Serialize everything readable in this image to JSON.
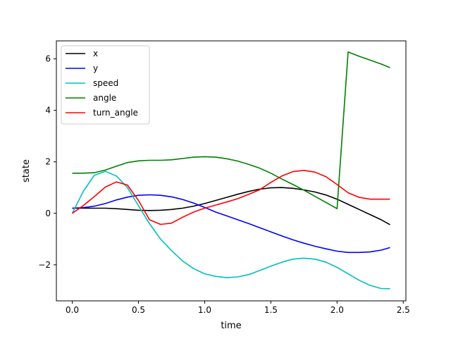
{
  "chart_data": {
    "type": "line",
    "xlabel": "time",
    "ylabel": "state",
    "xlim": [
      -0.12,
      2.52
    ],
    "ylim": [
      -3.4,
      6.7
    ],
    "x_ticks": [
      0.0,
      0.5,
      1.0,
      1.5,
      2.0,
      2.5
    ],
    "x_tick_labels": [
      "0.0",
      "0.5",
      "1.0",
      "1.5",
      "2.0",
      "2.5"
    ],
    "y_ticks": [
      -2,
      0,
      2,
      4,
      6
    ],
    "y_tick_labels": [
      "−2",
      "0",
      "2",
      "4",
      "6"
    ],
    "grid": false,
    "legend_position": "top-left",
    "x": [
      0.0,
      0.0833,
      0.1667,
      0.25,
      0.3333,
      0.4167,
      0.5,
      0.5833,
      0.6667,
      0.75,
      0.8333,
      0.9167,
      1.0,
      1.0833,
      1.1667,
      1.25,
      1.3333,
      1.4167,
      1.5,
      1.5833,
      1.6667,
      1.75,
      1.8333,
      1.9167,
      2.0,
      2.0833,
      2.1667,
      2.25,
      2.3333,
      2.4
    ],
    "series": [
      {
        "name": "x",
        "color": "#000000",
        "values": [
          0.2,
          0.2,
          0.2,
          0.2,
          0.18,
          0.15,
          0.12,
          0.11,
          0.12,
          0.15,
          0.2,
          0.28,
          0.38,
          0.5,
          0.62,
          0.74,
          0.85,
          0.94,
          0.99,
          1.0,
          0.97,
          0.91,
          0.83,
          0.71,
          0.55,
          0.35,
          0.15,
          -0.05,
          -0.25,
          -0.44
        ]
      },
      {
        "name": "y",
        "color": "#0000ff",
        "values": [
          0.2,
          0.22,
          0.28,
          0.38,
          0.52,
          0.63,
          0.7,
          0.72,
          0.7,
          0.64,
          0.54,
          0.4,
          0.23,
          0.05,
          -0.1,
          -0.25,
          -0.4,
          -0.56,
          -0.72,
          -0.88,
          -1.03,
          -1.16,
          -1.28,
          -1.38,
          -1.47,
          -1.52,
          -1.52,
          -1.5,
          -1.43,
          -1.33
        ]
      },
      {
        "name": "speed",
        "color": "#00bfbf",
        "values": [
          0.0,
          0.85,
          1.48,
          1.63,
          1.45,
          1.0,
          0.3,
          -0.4,
          -1.0,
          -1.45,
          -1.85,
          -2.15,
          -2.35,
          -2.45,
          -2.5,
          -2.47,
          -2.38,
          -2.22,
          -2.05,
          -1.9,
          -1.78,
          -1.74,
          -1.78,
          -1.9,
          -2.1,
          -2.35,
          -2.6,
          -2.8,
          -2.92,
          -2.93
        ]
      },
      {
        "name": "angle",
        "color": "#008000",
        "values": [
          1.56,
          1.56,
          1.58,
          1.68,
          1.83,
          1.97,
          2.04,
          2.06,
          2.06,
          2.08,
          2.13,
          2.18,
          2.2,
          2.18,
          2.12,
          2.03,
          1.9,
          1.75,
          1.56,
          1.33,
          1.12,
          0.9,
          0.66,
          0.42,
          0.18,
          6.27,
          6.1,
          5.95,
          5.8,
          5.66
        ]
      },
      {
        "name": "turn_angle",
        "color": "#ff0000",
        "values": [
          0.0,
          0.3,
          0.65,
          1.02,
          1.22,
          1.1,
          0.5,
          -0.25,
          -0.43,
          -0.38,
          -0.15,
          0.05,
          0.2,
          0.32,
          0.44,
          0.57,
          0.74,
          0.92,
          1.2,
          1.45,
          1.62,
          1.67,
          1.6,
          1.42,
          1.12,
          0.8,
          0.62,
          0.55,
          0.55,
          0.55
        ]
      }
    ]
  }
}
